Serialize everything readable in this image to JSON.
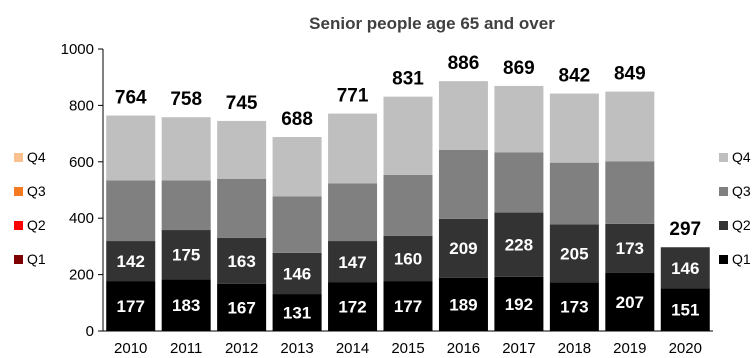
{
  "chart_data": {
    "type": "bar",
    "stacked": true,
    "title": "Senior people age 65 and over",
    "xlabel": "",
    "ylabel": "",
    "ylim": [
      0,
      1000
    ],
    "yticks": [
      "0",
      "200",
      "400",
      "600",
      "800",
      "1000"
    ],
    "grid": false,
    "categories": [
      "2010",
      "2011",
      "2012",
      "2013",
      "2014",
      "2015",
      "2016",
      "2017",
      "2018",
      "2019",
      "2020"
    ],
    "series": [
      {
        "name": "Q1",
        "color": "#000000",
        "values": [
          177,
          183,
          167,
          131,
          172,
          177,
          189,
          192,
          173,
          207,
          151
        ]
      },
      {
        "name": "Q2",
        "color": "#333333",
        "values": [
          142,
          175,
          163,
          146,
          147,
          160,
          209,
          228,
          205,
          173,
          146
        ]
      },
      {
        "name": "Q3",
        "color": "#808080",
        "values": [
          215,
          176,
          210,
          200,
          204,
          217,
          244,
          213,
          219,
          222,
          0
        ]
      },
      {
        "name": "Q4",
        "color": "#bfbfbf",
        "values": [
          230,
          224,
          205,
          211,
          248,
          277,
          244,
          236,
          245,
          247,
          0
        ]
      }
    ],
    "segment_labels": {
      "Q1": [
        "177",
        "183",
        "167",
        "131",
        "172",
        "177",
        "189",
        "192",
        "173",
        "207",
        "151"
      ],
      "Q2": [
        "142",
        "175",
        "163",
        "146",
        "147",
        "160",
        "209",
        "228",
        "205",
        "173",
        "146"
      ]
    },
    "totals": [
      "764",
      "758",
      "745",
      "688",
      "771",
      "831",
      "886",
      "869",
      "842",
      "849",
      "297"
    ],
    "legend_right": {
      "placement": "right",
      "items": [
        {
          "name": "Q4",
          "color": "#bfbfbf"
        },
        {
          "name": "Q3",
          "color": "#808080"
        },
        {
          "name": "Q2",
          "color": "#333333"
        },
        {
          "name": "Q1",
          "color": "#000000"
        }
      ]
    },
    "legend_left": {
      "placement": "left",
      "items": [
        {
          "name": "Q4",
          "color": "#fac090"
        },
        {
          "name": "Q3",
          "color": "#f47920"
        },
        {
          "name": "Q2",
          "color": "#ff0000"
        },
        {
          "name": "Q1",
          "color": "#7f0000"
        }
      ]
    }
  }
}
